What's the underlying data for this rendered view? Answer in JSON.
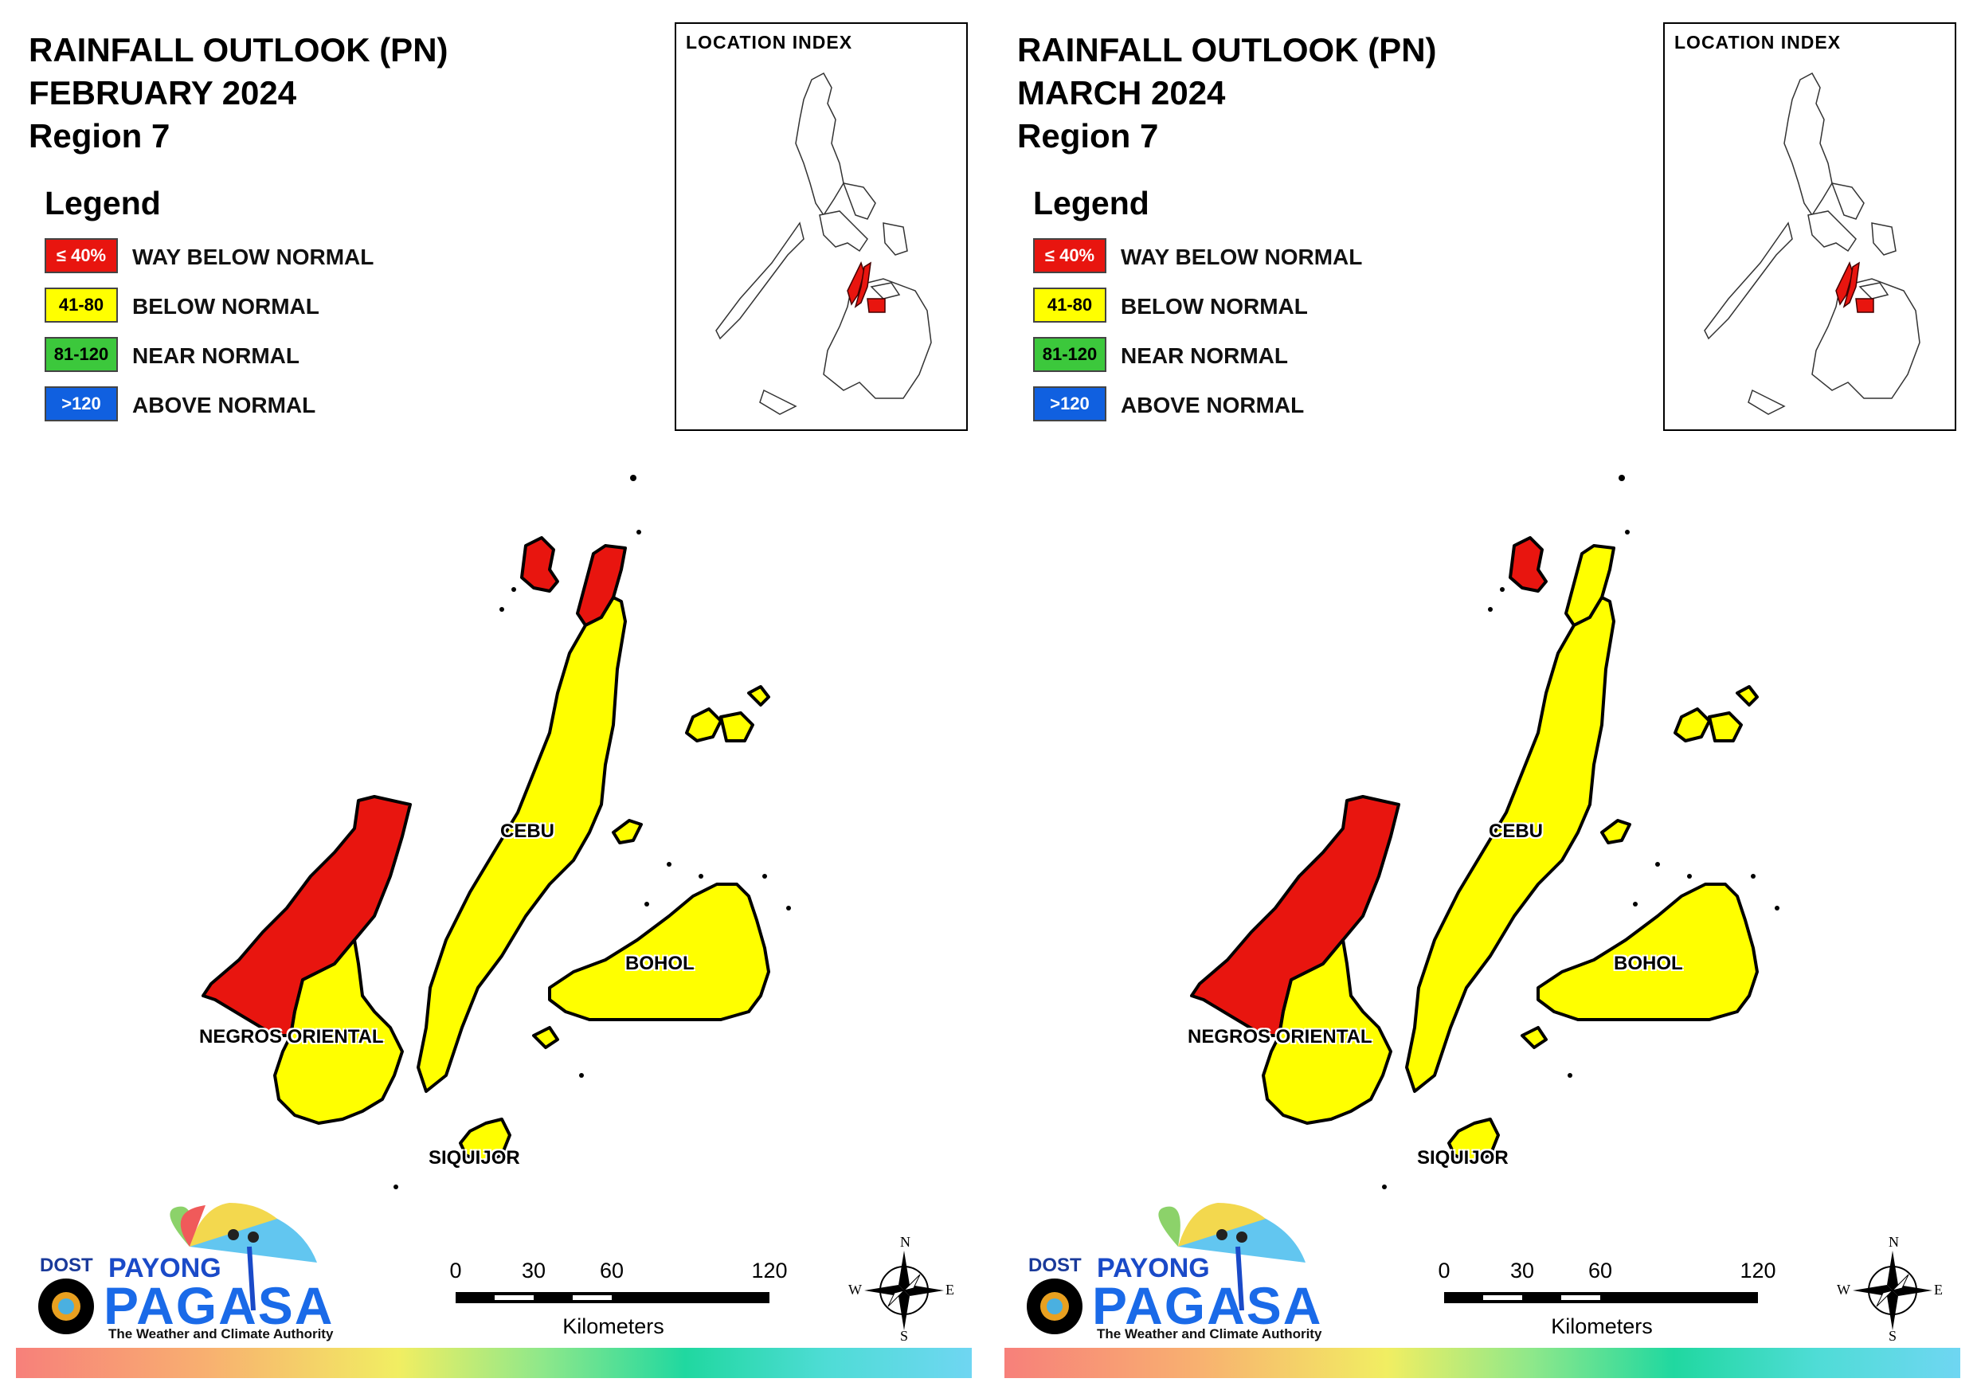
{
  "panels": [
    {
      "title_line1": "RAINFALL OUTLOOK (PN)",
      "title_line2": "FEBRUARY 2024",
      "title_line3": "Region 7",
      "legend_heading": "Legend",
      "legend": [
        {
          "range": "≤ 40%",
          "label": "WAY BELOW NORMAL",
          "color": "#e8150f",
          "text_color": "#ffffff"
        },
        {
          "range": "41-80",
          "label": "BELOW NORMAL",
          "color": "#ffff00",
          "text_color": "#000000"
        },
        {
          "range": "81-120",
          "label": "NEAR NORMAL",
          "color": "#3cc83c",
          "text_color": "#000000"
        },
        {
          "range": ">120",
          "label": "ABOVE NORMAL",
          "color": "#1060e0",
          "text_color": "#ffffff"
        }
      ],
      "inset_title": "LOCATION INDEX",
      "regions": [
        {
          "name": "CEBU",
          "north_tip_color": "#e8150f",
          "body_color": "#ffff00"
        },
        {
          "name": "BOHOL",
          "color": "#ffff00"
        },
        {
          "name": "NEGROS ORIENTAL",
          "north_color": "#e8150f",
          "south_color": "#ffff00"
        },
        {
          "name": "SIQUIJOR",
          "color": "#ffff00"
        }
      ],
      "bantayan_color": "#e8150f",
      "camotes_color": "#ffff00",
      "scale": {
        "ticks": [
          "0",
          "30",
          "60",
          "120"
        ],
        "units": "Kilometers"
      },
      "compass": {
        "n": "N",
        "e": "E",
        "s": "S",
        "w": "W"
      },
      "logo": {
        "dost": "DOST",
        "payong": "PAYONG",
        "pagasa": "PAGASA",
        "tagline": "The Weather and Climate Authority"
      }
    },
    {
      "title_line1": "RAINFALL OUTLOOK (PN)",
      "title_line2": "MARCH 2024",
      "title_line3": "Region 7",
      "legend_heading": "Legend",
      "legend": [
        {
          "range": "≤ 40%",
          "label": "WAY BELOW NORMAL",
          "color": "#e8150f",
          "text_color": "#ffffff"
        },
        {
          "range": "41-80",
          "label": "BELOW NORMAL",
          "color": "#ffff00",
          "text_color": "#000000"
        },
        {
          "range": "81-120",
          "label": "NEAR NORMAL",
          "color": "#3cc83c",
          "text_color": "#000000"
        },
        {
          "range": ">120",
          "label": "ABOVE NORMAL",
          "color": "#1060e0",
          "text_color": "#ffffff"
        }
      ],
      "inset_title": "LOCATION INDEX",
      "regions": [
        {
          "name": "CEBU",
          "north_tip_color": "#ffff00",
          "body_color": "#ffff00"
        },
        {
          "name": "BOHOL",
          "color": "#ffff00"
        },
        {
          "name": "NEGROS ORIENTAL",
          "north_color": "#e8150f",
          "south_color": "#ffff00"
        },
        {
          "name": "SIQUIJOR",
          "color": "#ffff00"
        }
      ],
      "bantayan_color": "#e8150f",
      "camotes_color": "#ffff00",
      "scale": {
        "ticks": [
          "0",
          "30",
          "60",
          "120"
        ],
        "units": "Kilometers"
      },
      "compass": {
        "n": "N",
        "e": "E",
        "s": "S",
        "w": "W"
      },
      "logo": {
        "dost": "DOST",
        "payong": "PAYONG",
        "pagasa": "PAGASA",
        "tagline": "The Weather and Climate Authority"
      }
    }
  ]
}
